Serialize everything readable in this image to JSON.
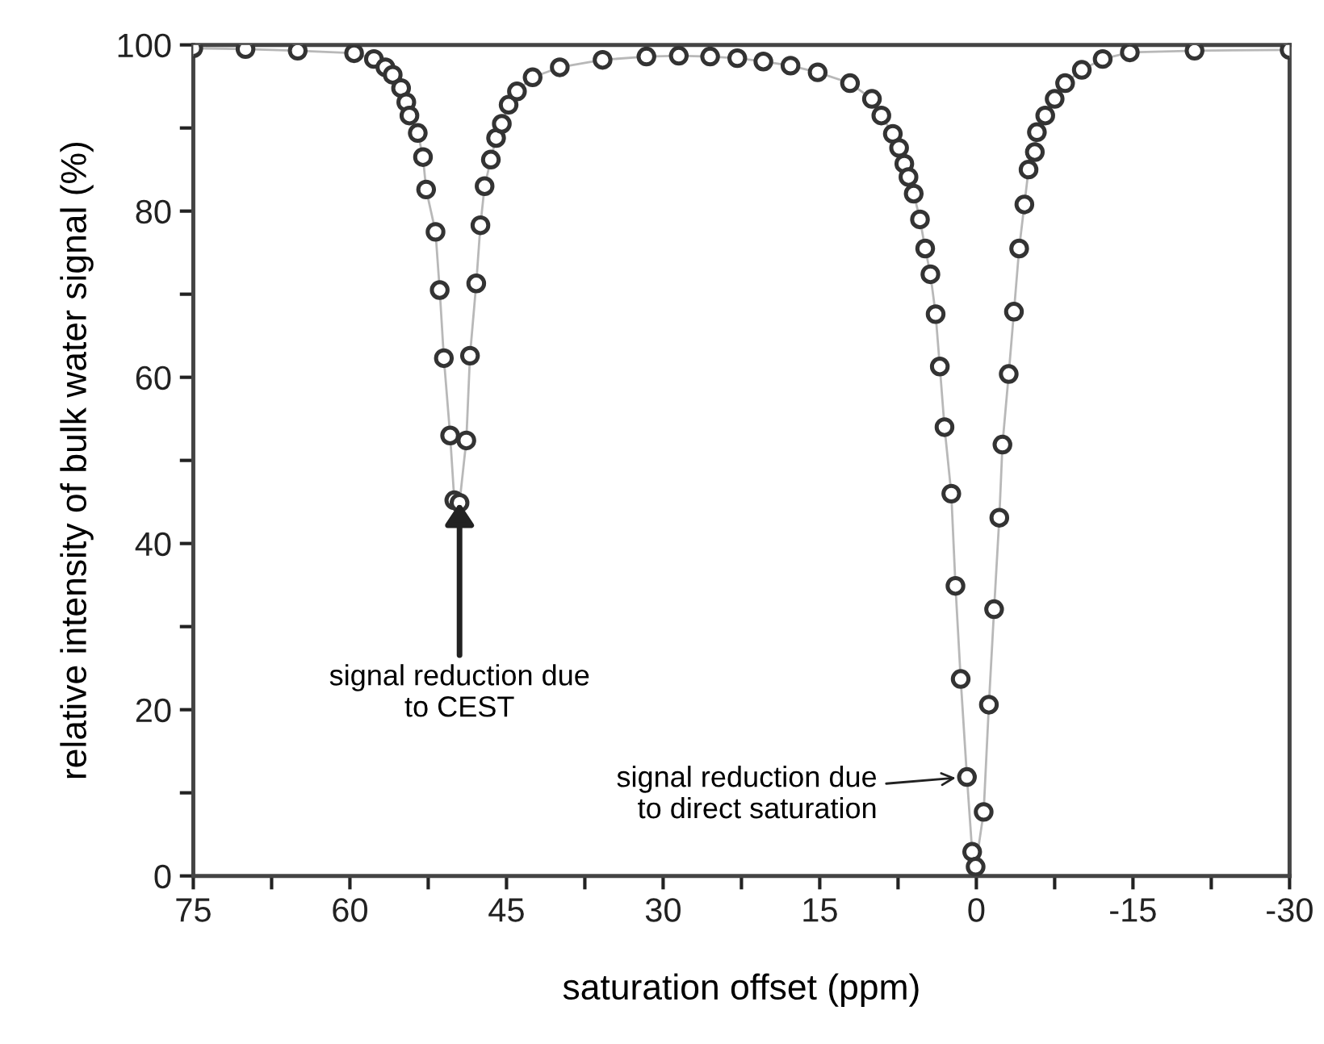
{
  "chart_data": {
    "type": "line",
    "xlabel": "saturation offset (ppm)",
    "ylabel": "relative intensity of bulk water signal (%)",
    "x": [
      75,
      70,
      65,
      59.6,
      57.7,
      56.6,
      55.9,
      55.1,
      54.6,
      54.3,
      53.5,
      53.0,
      52.7,
      51.8,
      51.4,
      51.0,
      50.4,
      50.0,
      49.5,
      48.85,
      48.5,
      47.9,
      47.5,
      47.1,
      46.5,
      46.0,
      45.45,
      44.8,
      44.0,
      42.5,
      39.9,
      35.8,
      31.6,
      28.5,
      25.5,
      22.9,
      20.4,
      17.8,
      15.2,
      12.1,
      10.0,
      9.1,
      8.0,
      7.4,
      6.9,
      6.5,
      6.0,
      5.4,
      4.9,
      4.4,
      3.9,
      3.5,
      3.05,
      2.4,
      2.0,
      1.5,
      0.9,
      0.4,
      0.07,
      -0.7,
      -1.2,
      -1.7,
      -2.2,
      -2.5,
      -3.1,
      -3.6,
      -4.1,
      -4.6,
      -5.0,
      -5.6,
      -5.8,
      -6.6,
      -7.5,
      -8.5,
      -10.1,
      -12.1,
      -14.7,
      -20.9,
      -30
    ],
    "series": [
      {
        "color": "#333333",
        "values": [
          99.6,
          99.5,
          99.3,
          99.0,
          98.3,
          97.3,
          96.4,
          94.8,
          93.1,
          91.5,
          89.4,
          86.5,
          82.6,
          77.5,
          70.5,
          62.3,
          53.0,
          45.2,
          44.9,
          52.4,
          62.6,
          71.3,
          78.3,
          83.0,
          86.2,
          88.8,
          90.5,
          92.8,
          94.4,
          96.1,
          97.3,
          98.2,
          98.6,
          98.7,
          98.6,
          98.4,
          98.0,
          97.5,
          96.7,
          95.4,
          93.5,
          91.5,
          89.3,
          87.6,
          85.7,
          84.1,
          82.1,
          79.0,
          75.5,
          72.4,
          67.6,
          61.3,
          54.0,
          46.0,
          34.9,
          23.7,
          11.9,
          2.9,
          1.1,
          7.7,
          20.6,
          32.1,
          43.1,
          51.9,
          60.4,
          67.9,
          75.5,
          80.8,
          85.0,
          87.1,
          89.5,
          91.5,
          93.5,
          95.4,
          97.0,
          98.3,
          99.1,
          99.3,
          99.4
        ]
      }
    ],
    "marker": "circle",
    "xlim": [
      75,
      -30
    ],
    "xticks": [
      75,
      {
        "value": 67.5,
        "label": null
      },
      60,
      {
        "value": 52.5,
        "label": null
      },
      45,
      {
        "value": 37.5,
        "label": null
      },
      30,
      {
        "value": 22.5,
        "label": null
      },
      15,
      {
        "value": 7.5,
        "label": null
      },
      0,
      {
        "value": -7.5,
        "label": null
      },
      {
        "value": -15,
        "label": "-15"
      },
      {
        "value": -22.5,
        "label": null
      },
      {
        "value": -30,
        "label": "-30"
      }
    ],
    "ylim": [
      0,
      100
    ],
    "yticks": [
      0,
      {
        "value": 10,
        "label": null
      },
      20,
      {
        "value": 30,
        "label": null
      },
      40,
      {
        "value": 50,
        "label": null
      },
      60,
      {
        "value": 70,
        "label": null
      },
      80,
      {
        "value": 90,
        "label": null
      },
      100
    ],
    "annotations": [
      {
        "text": "signal reduction due\nto CEST",
        "x": 49.5,
        "y": 44.9
      },
      {
        "text": "signal reduction due\nto direct saturation",
        "x": 0.9,
        "y": 11.9
      }
    ]
  }
}
